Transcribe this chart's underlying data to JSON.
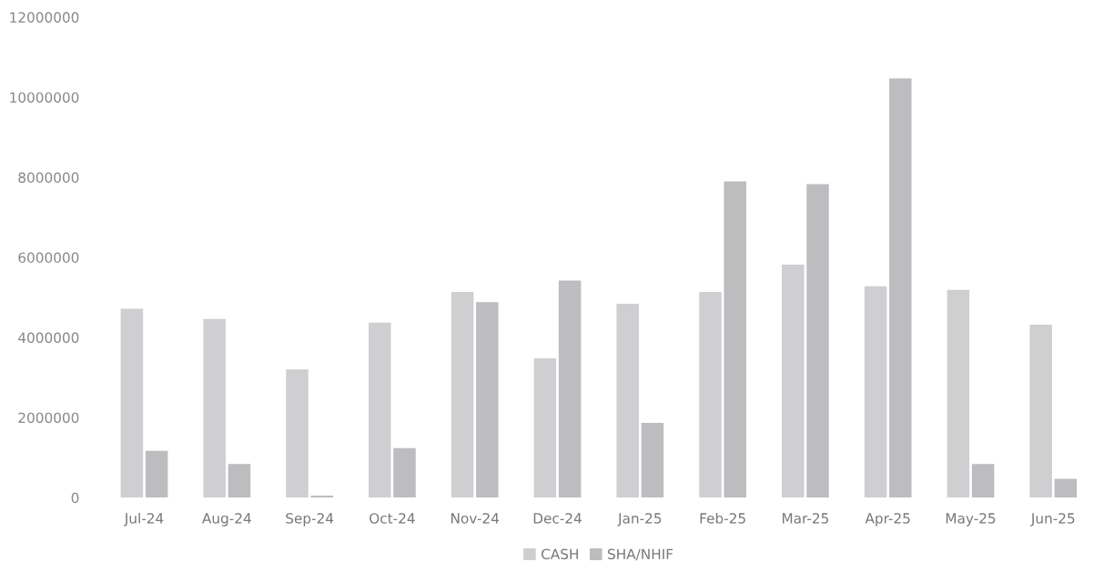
{
  "chart_data": {
    "type": "bar",
    "categories": [
      "Jul-24",
      "Aug-24",
      "Sep-24",
      "Oct-24",
      "Nov-24",
      "Dec-24",
      "Jan-25",
      "Feb-25",
      "Mar-25",
      "Apr-25",
      "May-25",
      "Jun-25"
    ],
    "series": [
      {
        "name": "CASH",
        "color": "#cfcfd2",
        "values": [
          4720000,
          4460000,
          3200000,
          4370000,
          5140000,
          3480000,
          4840000,
          5140000,
          5820000,
          5280000,
          5190000,
          4320000
        ]
      },
      {
        "name": "SHA/NHIF",
        "color": "#bdbdc0",
        "values": [
          1170000,
          840000,
          50000,
          1240000,
          4880000,
          5420000,
          1870000,
          7900000,
          7830000,
          10470000,
          840000,
          470000
        ]
      }
    ],
    "ylim": [
      0,
      12000000
    ],
    "yticks": [
      0,
      2000000,
      4000000,
      6000000,
      8000000,
      10000000,
      12000000
    ],
    "grid": false,
    "legend": "bottom"
  }
}
